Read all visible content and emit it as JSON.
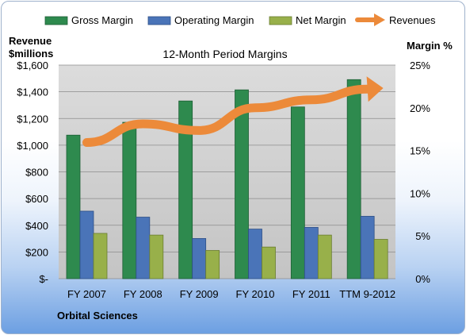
{
  "company": "Orbital Sciences",
  "chart_data": {
    "type": "bar",
    "title": "12-Month Period Margins",
    "left_axis": {
      "label_lines": [
        "Revenue",
        "$millions"
      ],
      "ticks": [
        "$-",
        "$200",
        "$400",
        "$600",
        "$800",
        "$1,000",
        "$1,200",
        "$1,400",
        "$1,600"
      ],
      "range": [
        0,
        1600
      ]
    },
    "right_axis": {
      "label": "Margin %",
      "ticks": [
        "0%",
        "5%",
        "10%",
        "15%",
        "20%",
        "25%"
      ],
      "range": [
        0,
        25
      ]
    },
    "categories": [
      "FY 2007",
      "FY 2008",
      "FY 2009",
      "FY 2010",
      "FY 2011",
      "TTM 9-2012"
    ],
    "series": [
      {
        "name": "Gross Margin",
        "axis": "right",
        "kind": "bar",
        "color": "#2e8a4e",
        "values": [
          16.8,
          18.3,
          20.8,
          22.1,
          20.1,
          23.3
        ]
      },
      {
        "name": "Operating Margin",
        "axis": "right",
        "kind": "bar",
        "color": "#4a74b8",
        "values": [
          7.9,
          7.2,
          4.7,
          5.8,
          6.0,
          7.3
        ]
      },
      {
        "name": "Net Margin",
        "axis": "right",
        "kind": "bar",
        "color": "#98b04a",
        "values": [
          5.3,
          5.1,
          3.3,
          3.7,
          5.1,
          4.6
        ]
      },
      {
        "name": "Revenues",
        "axis": "left",
        "kind": "line",
        "color": "#ec8a3a",
        "values": [
          1020,
          1160,
          1110,
          1280,
          1340,
          1420
        ]
      }
    ],
    "grid": true,
    "legend_position": "top"
  }
}
